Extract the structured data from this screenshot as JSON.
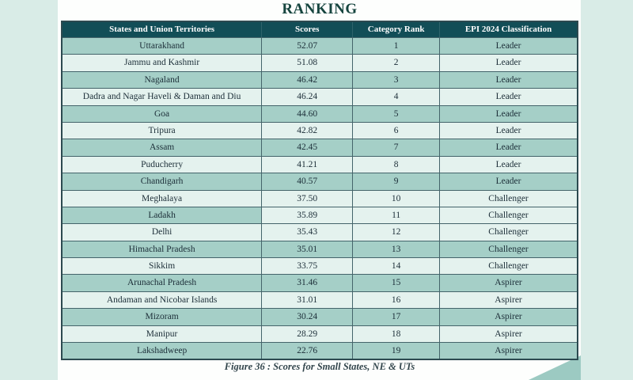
{
  "title": "RANKING",
  "caption": "Figure 36 : Scores for Small States, NE & UTs",
  "colors": {
    "header_bg": "#124e57",
    "header_text": "#ffffff",
    "row_dark": "#a5cfc7",
    "row_light": "#e4f2ee",
    "margin_strip": "#d9ece7",
    "triangle": "#9ccac2",
    "title_text": "#16453f"
  },
  "table": {
    "headers": [
      "States and Union Territories",
      "Scores",
      "Category Rank",
      "EPI 2024 Classification"
    ],
    "rows": [
      {
        "state": "Uttarakhand",
        "score": "52.07",
        "rank": "1",
        "classification": "Leader",
        "shade": "dark"
      },
      {
        "state": "Jammu and Kashmir",
        "score": "51.08",
        "rank": "2",
        "classification": "Leader",
        "shade": "light"
      },
      {
        "state": "Nagaland",
        "score": "46.42",
        "rank": "3",
        "classification": "Leader",
        "shade": "dark"
      },
      {
        "state": "Dadra and Nagar Haveli & Daman and Diu",
        "score": "46.24",
        "rank": "4",
        "classification": "Leader",
        "shade": "light"
      },
      {
        "state": "Goa",
        "score": "44.60",
        "rank": "5",
        "classification": "Leader",
        "shade": "dark"
      },
      {
        "state": "Tripura",
        "score": "42.82",
        "rank": "6",
        "classification": "Leader",
        "shade": "light"
      },
      {
        "state": "Assam",
        "score": "42.45",
        "rank": "7",
        "classification": "Leader",
        "shade": "dark"
      },
      {
        "state": "Puducherry",
        "score": "41.21",
        "rank": "8",
        "classification": "Leader",
        "shade": "light"
      },
      {
        "state": "Chandigarh",
        "score": "40.57",
        "rank": "9",
        "classification": "Leader",
        "shade": "dark"
      },
      {
        "state": "Meghalaya",
        "score": "37.50",
        "rank": "10",
        "classification": "Challenger",
        "shade": "light"
      },
      {
        "state": "Ladakh",
        "score": "35.89",
        "rank": "11",
        "classification": "Challenger",
        "shade": "mixed"
      },
      {
        "state": "Delhi",
        "score": "35.43",
        "rank": "12",
        "classification": "Challenger",
        "shade": "light"
      },
      {
        "state": "Himachal Pradesh",
        "score": "35.01",
        "rank": "13",
        "classification": "Challenger",
        "shade": "dark"
      },
      {
        "state": "Sikkim",
        "score": "33.75",
        "rank": "14",
        "classification": "Challenger",
        "shade": "light"
      },
      {
        "state": "Arunachal Pradesh",
        "score": "31.46",
        "rank": "15",
        "classification": "Aspirer",
        "shade": "dark"
      },
      {
        "state": "Andaman and Nicobar Islands",
        "score": "31.01",
        "rank": "16",
        "classification": "Aspirer",
        "shade": "light"
      },
      {
        "state": "Mizoram",
        "score": "30.24",
        "rank": "17",
        "classification": "Aspirer",
        "shade": "dark"
      },
      {
        "state": "Manipur",
        "score": "28.29",
        "rank": "18",
        "classification": "Aspirer",
        "shade": "light"
      },
      {
        "state": "Lakshadweep",
        "score": "22.76",
        "rank": "19",
        "classification": "Aspirer",
        "shade": "dark"
      }
    ]
  }
}
